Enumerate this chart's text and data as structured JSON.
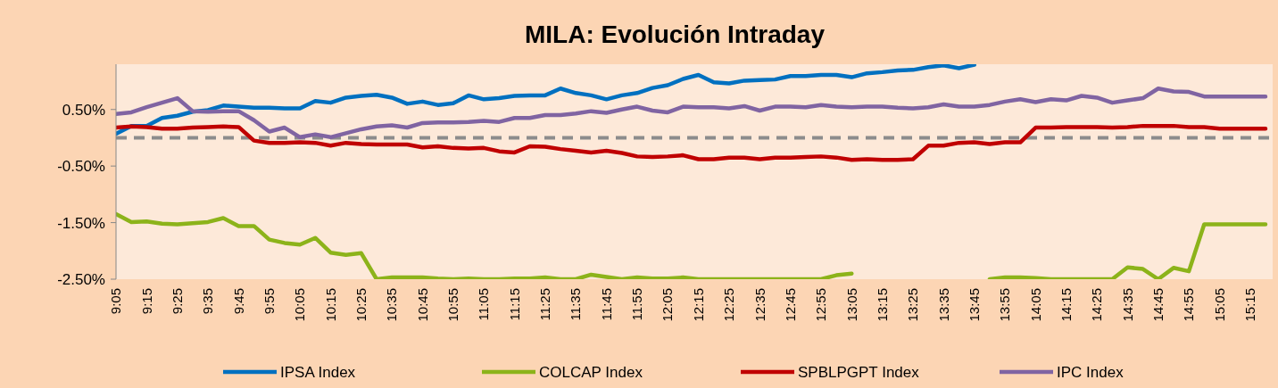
{
  "chart_data": {
    "type": "line",
    "title": "MILA: Evolución Intraday",
    "categories": [
      "9:05",
      null,
      "9:15",
      null,
      "9:25",
      null,
      "9:35",
      null,
      "9:45",
      null,
      "9:55",
      null,
      "10:05",
      null,
      "10:15",
      null,
      "10:25",
      null,
      "10:35",
      null,
      "10:45",
      null,
      "10:55",
      null,
      "11:05",
      null,
      "11:15",
      null,
      "11:25",
      null,
      "11:35",
      null,
      "11:45",
      null,
      "11:55",
      null,
      "12:05",
      null,
      "12:15",
      null,
      "12:25",
      null,
      "12:35",
      null,
      "12:45",
      null,
      "12:55",
      null,
      "13:05",
      null,
      "13:15",
      null,
      "13:25",
      null,
      "13:35",
      null,
      "13:45",
      null,
      "13:55",
      null,
      "14:05",
      null,
      "14:15",
      null,
      "14:25",
      null,
      "14:35",
      null,
      "14:45",
      null,
      "14:55",
      null,
      "15:05",
      null,
      "15:15",
      null
    ],
    "series": [
      {
        "name": "IPSA Index",
        "color": "#0070c0",
        "values": [
          0.07,
          0.21,
          0.21,
          0.35,
          0.39,
          0.46,
          0.49,
          0.57,
          0.55,
          0.53,
          0.53,
          0.52,
          0.52,
          0.65,
          0.62,
          0.71,
          0.74,
          0.76,
          0.71,
          0.6,
          0.64,
          0.58,
          0.61,
          0.75,
          0.68,
          0.7,
          0.74,
          0.75,
          0.75,
          0.87,
          0.79,
          0.75,
          0.68,
          0.75,
          0.79,
          0.88,
          0.93,
          1.04,
          1.11,
          0.98,
          0.96,
          1.01,
          1.02,
          1.03,
          1.09,
          1.09,
          1.11,
          1.11,
          1.07,
          1.14,
          1.16,
          1.19,
          1.2,
          1.25,
          1.28,
          1.23,
          1.29,
          null,
          null,
          null,
          null,
          null,
          null,
          null,
          null,
          null,
          null,
          null,
          null,
          null,
          null,
          null,
          null,
          null,
          null,
          null
        ]
      },
      {
        "name": "COLCAP Index",
        "color": "#8cb31a",
        "values": [
          -1.35,
          -1.49,
          -1.48,
          -1.52,
          -1.53,
          -1.51,
          -1.49,
          -1.42,
          -1.56,
          -1.56,
          -1.8,
          -1.86,
          -1.89,
          -1.77,
          -2.03,
          -2.07,
          -2.04,
          -2.5,
          -2.47,
          -2.47,
          -2.47,
          -2.49,
          -2.5,
          -2.49,
          -2.5,
          -2.5,
          -2.49,
          -2.49,
          -2.47,
          -2.5,
          -2.5,
          -2.42,
          -2.46,
          -2.5,
          -2.47,
          -2.49,
          -2.49,
          -2.47,
          -2.5,
          -2.5,
          -2.5,
          -2.5,
          -2.5,
          -2.5,
          -2.5,
          -2.5,
          -2.5,
          -2.43,
          -2.4,
          null,
          null,
          null,
          null,
          null,
          null,
          null,
          null,
          -2.5,
          -2.47,
          -2.47,
          -2.48,
          -2.5,
          -2.5,
          -2.5,
          -2.5,
          -2.5,
          -2.29,
          -2.32,
          -2.5,
          -2.3,
          -2.36,
          -1.53,
          -1.53,
          -1.53,
          -1.53,
          -1.53
        ]
      },
      {
        "name": "SPBLPGPT Index",
        "color": "#c00000",
        "values": [
          0.18,
          0.2,
          0.19,
          0.16,
          0.16,
          0.18,
          0.19,
          0.2,
          0.19,
          -0.05,
          -0.09,
          -0.09,
          -0.08,
          -0.09,
          -0.14,
          -0.09,
          -0.11,
          -0.12,
          -0.12,
          -0.12,
          -0.17,
          -0.15,
          -0.18,
          -0.19,
          -0.18,
          -0.24,
          -0.26,
          -0.15,
          -0.16,
          -0.2,
          -0.23,
          -0.26,
          -0.23,
          -0.27,
          -0.33,
          -0.34,
          -0.33,
          -0.31,
          -0.38,
          -0.38,
          -0.35,
          -0.35,
          -0.38,
          -0.35,
          -0.35,
          -0.34,
          -0.33,
          -0.35,
          -0.39,
          -0.38,
          -0.39,
          -0.39,
          -0.38,
          -0.14,
          -0.14,
          -0.09,
          -0.08,
          -0.11,
          -0.08,
          -0.08,
          0.18,
          0.18,
          0.19,
          0.19,
          0.19,
          0.18,
          0.19,
          0.21,
          0.21,
          0.21,
          0.19,
          0.19,
          0.16,
          0.16,
          0.16,
          0.16
        ]
      },
      {
        "name": "IPC Index",
        "color": "#8064a2",
        "values": [
          0.42,
          0.45,
          0.54,
          0.62,
          0.7,
          0.47,
          0.46,
          0.47,
          0.47,
          0.31,
          0.11,
          0.18,
          0.01,
          0.06,
          0.01,
          0.08,
          0.15,
          0.2,
          0.22,
          0.18,
          0.26,
          0.27,
          0.27,
          0.28,
          0.3,
          0.28,
          0.35,
          0.35,
          0.4,
          0.4,
          0.43,
          0.47,
          0.44,
          0.5,
          0.55,
          0.48,
          0.45,
          0.55,
          0.54,
          0.54,
          0.52,
          0.56,
          0.48,
          0.55,
          0.55,
          0.54,
          0.58,
          0.55,
          0.54,
          0.55,
          0.55,
          0.53,
          0.52,
          0.54,
          0.59,
          0.55,
          0.55,
          0.58,
          0.64,
          0.68,
          0.63,
          0.68,
          0.66,
          0.74,
          0.71,
          0.62,
          0.66,
          0.7,
          0.87,
          0.82,
          0.81,
          0.73,
          0.73,
          0.73,
          0.73,
          0.73
        ]
      }
    ],
    "ylim": [
      -2.5,
      1.3
    ],
    "yticks": [
      {
        "value": -2.5,
        "label": "-2.50%"
      },
      {
        "value": -1.5,
        "label": "-1.50%"
      },
      {
        "value": -0.5,
        "label": "-0.50%"
      },
      {
        "value": 0.5,
        "label": "0.50%"
      }
    ],
    "ref_lines": [
      {
        "axis": "y",
        "value": 0,
        "label": null,
        "color": "#8c8c8c",
        "line_style": "dashed"
      }
    ],
    "legend": "bottom",
    "line_style": "solid"
  }
}
